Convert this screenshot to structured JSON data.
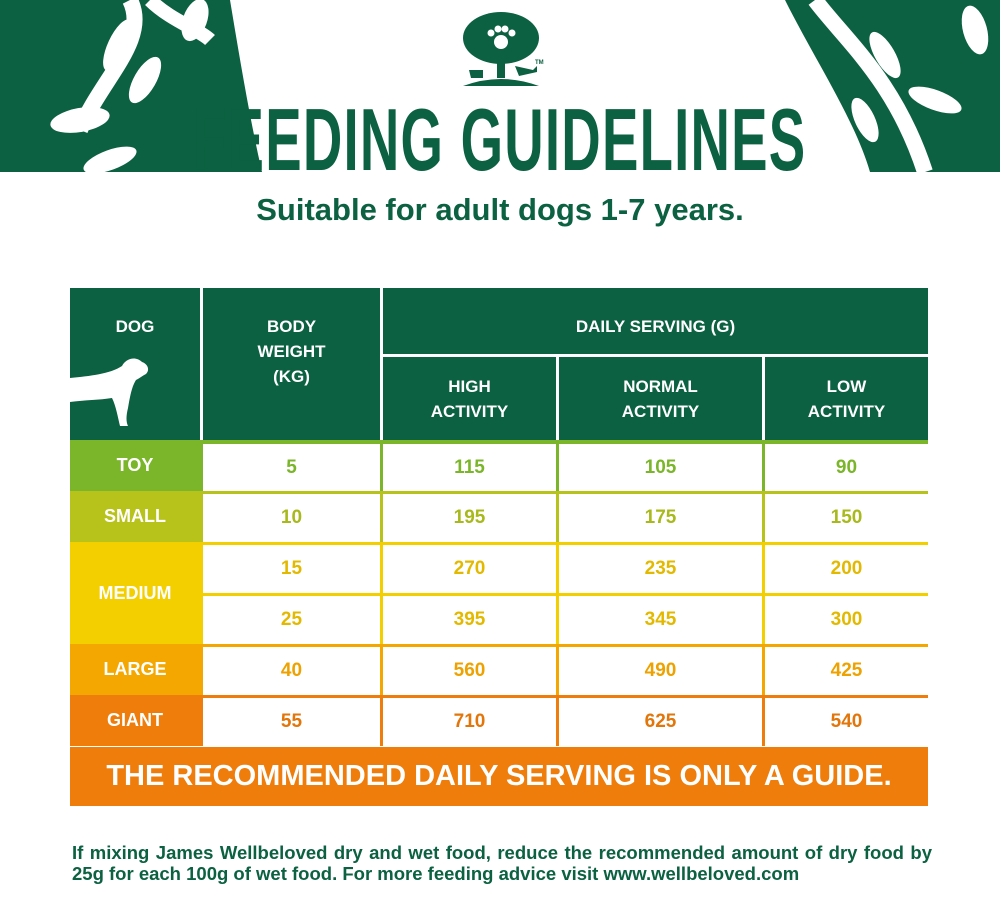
{
  "logo": {
    "alt": "James Wellbeloved tree logo",
    "tm": "TM"
  },
  "title": "FEEDING GUIDELINES",
  "subtitle": "Suitable for adult dogs 1-7 years.",
  "colors": {
    "brand_green": "#0b6141",
    "toy": "#7ab52a",
    "small": "#b7c21b",
    "medium": "#f3cf00",
    "large": "#f4a700",
    "giant": "#ee7d0b"
  },
  "table": {
    "headers": {
      "dog": "DOG",
      "body_weight": [
        "BODY",
        "WEIGHT",
        "(KG)"
      ],
      "daily_serving": "DAILY SERVING (G)",
      "high": [
        "HIGH",
        "ACTIVITY"
      ],
      "normal": [
        "NORMAL",
        "ACTIVITY"
      ],
      "low": [
        "LOW",
        "ACTIVITY"
      ]
    },
    "groups": [
      {
        "label": "TOY",
        "rows": [
          {
            "weight": "5",
            "high": "115",
            "normal": "105",
            "low": "90"
          }
        ]
      },
      {
        "label": "SMALL",
        "rows": [
          {
            "weight": "10",
            "high": "195",
            "normal": "175",
            "low": "150"
          }
        ]
      },
      {
        "label": "MEDIUM",
        "rows": [
          {
            "weight": "15",
            "high": "270",
            "normal": "235",
            "low": "200"
          },
          {
            "weight": "25",
            "high": "395",
            "normal": "345",
            "low": "300"
          }
        ]
      },
      {
        "label": "LARGE",
        "rows": [
          {
            "weight": "40",
            "high": "560",
            "normal": "490",
            "low": "425"
          }
        ]
      },
      {
        "label": "GIANT",
        "rows": [
          {
            "weight": "55",
            "high": "710",
            "normal": "625",
            "low": "540"
          }
        ]
      }
    ]
  },
  "banner": "THE RECOMMENDED DAILY SERVING IS ONLY A GUIDE.",
  "note": "If mixing James Wellbeloved dry and wet food, reduce the recommended amount of dry food by 25g for each 100g of wet food. For more feeding advice visit www.wellbeloved.com"
}
